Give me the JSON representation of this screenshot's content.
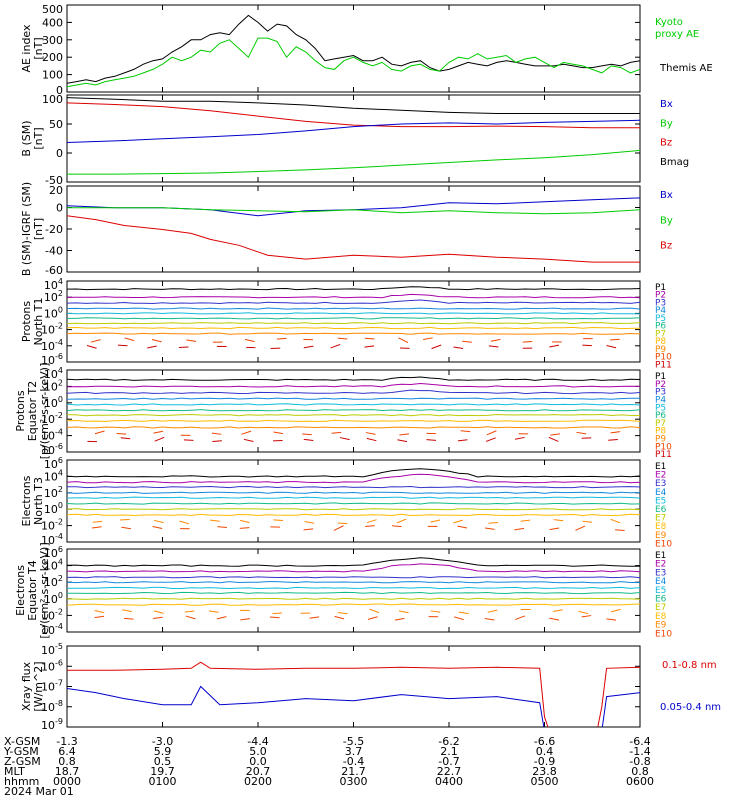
{
  "colors": {
    "black": "#000000",
    "red": "#dd0000",
    "blue": "#0000cc",
    "green": "#00cc00",
    "chan": [
      "#000000",
      "#aa00aa",
      "#3333cc",
      "#1188dd",
      "#11bbdd",
      "#11bb88",
      "#bbcc00",
      "#ffbb00",
      "#ff8800",
      "#ee4400",
      "#cc0000"
    ]
  },
  "chart_data": [
    {
      "type": "line",
      "panel": "ae",
      "ylabel": [
        "AE index",
        "[nT]"
      ],
      "yticks": [
        "500",
        "400",
        "300",
        "200",
        "100",
        "0"
      ],
      "ylim": [
        0,
        500
      ],
      "legend": [
        {
          "name": "Kyoto proxy AE",
          "lines": [
            "Kyoto",
            "proxy AE"
          ],
          "color": "#00cc00"
        },
        {
          "name": "Themis AE",
          "lines": [
            "Themis AE"
          ],
          "color": "#000000"
        }
      ],
      "series": [
        {
          "name": "Themis AE",
          "color": "#000000",
          "x": [
            0,
            0.1,
            0.2,
            0.3,
            0.4,
            0.5,
            0.6,
            0.7,
            0.8,
            0.9,
            1.0,
            1.1,
            1.2,
            1.3,
            1.4,
            1.5,
            1.6,
            1.7,
            1.8,
            1.9,
            2.0,
            2.1,
            2.2,
            2.3,
            2.4,
            2.5,
            2.6,
            2.7,
            2.8,
            2.9,
            3.0,
            3.1,
            3.2,
            3.3,
            3.4,
            3.5,
            3.6,
            3.7,
            3.8,
            3.9,
            4.0,
            4.1,
            4.2,
            4.3,
            4.4,
            4.5,
            4.6,
            4.7,
            4.8,
            4.9,
            5.0,
            5.1,
            5.2,
            5.3,
            5.4,
            5.5,
            5.6,
            5.7,
            5.8,
            5.9,
            6.0
          ],
          "y": [
            50,
            60,
            70,
            60,
            80,
            90,
            110,
            130,
            160,
            180,
            190,
            230,
            260,
            300,
            300,
            330,
            340,
            330,
            390,
            440,
            400,
            350,
            390,
            380,
            330,
            300,
            250,
            180,
            190,
            200,
            210,
            180,
            180,
            200,
            160,
            150,
            170,
            180,
            140,
            120,
            130,
            150,
            170,
            160,
            150,
            170,
            180,
            170,
            160,
            150,
            150,
            150,
            160,
            150,
            140,
            140,
            150,
            160,
            150,
            170,
            180
          ]
        },
        {
          "name": "Kyoto proxy AE",
          "color": "#00cc00",
          "x": [
            0,
            0.1,
            0.2,
            0.3,
            0.4,
            0.5,
            0.6,
            0.7,
            0.8,
            0.9,
            1.0,
            1.1,
            1.2,
            1.3,
            1.4,
            1.5,
            1.6,
            1.7,
            1.8,
            1.9,
            2.0,
            2.1,
            2.2,
            2.3,
            2.4,
            2.5,
            2.6,
            2.7,
            2.8,
            2.9,
            3.0,
            3.1,
            3.2,
            3.3,
            3.4,
            3.5,
            3.6,
            3.7,
            3.8,
            3.9,
            4.0,
            4.1,
            4.2,
            4.3,
            4.4,
            4.5,
            4.6,
            4.7,
            4.8,
            4.9,
            5.0,
            5.1,
            5.2,
            5.3,
            5.4,
            5.5,
            5.6,
            5.7,
            5.8,
            5.9,
            6.0
          ],
          "y": [
            30,
            40,
            50,
            40,
            60,
            70,
            80,
            90,
            110,
            130,
            160,
            200,
            180,
            200,
            240,
            230,
            280,
            300,
            250,
            200,
            310,
            310,
            290,
            200,
            260,
            230,
            180,
            140,
            130,
            180,
            200,
            170,
            150,
            170,
            130,
            120,
            150,
            160,
            130,
            120,
            170,
            200,
            190,
            220,
            190,
            200,
            210,
            170,
            190,
            200,
            170,
            140,
            170,
            160,
            150,
            130,
            110,
            150,
            140,
            110,
            130
          ]
        }
      ]
    },
    {
      "type": "line",
      "panel": "bgsm",
      "ylabel": [
        "B (SM)",
        "[nT]"
      ],
      "yticks": [
        "100",
        "50",
        "0",
        "-50"
      ],
      "ylim": [
        -60,
        105
      ],
      "legend": [
        {
          "name": "Bx",
          "color": "#0000cc"
        },
        {
          "name": "By",
          "color": "#00cc00"
        },
        {
          "name": "Bz",
          "color": "#dd0000"
        },
        {
          "name": "Bmag",
          "color": "#000000"
        }
      ],
      "series": [
        {
          "name": "Bmag",
          "color": "#000000",
          "x": [
            0,
            0.5,
            1.0,
            1.5,
            2.0,
            2.5,
            3.0,
            3.5,
            4.0,
            4.5,
            5.0,
            5.5,
            6.0
          ],
          "y": [
            100,
            97,
            93,
            93,
            90,
            86,
            80,
            76,
            72,
            70,
            70,
            70,
            70
          ]
        },
        {
          "name": "Bz",
          "color": "#dd0000",
          "x": [
            0,
            0.5,
            1.0,
            1.5,
            2.0,
            2.5,
            3.0,
            3.5,
            4.0,
            4.5,
            5.0,
            5.5,
            6.0
          ],
          "y": [
            90,
            87,
            83,
            75,
            65,
            55,
            48,
            45,
            45,
            46,
            45,
            43,
            43
          ]
        },
        {
          "name": "Bx",
          "color": "#0000cc",
          "x": [
            0,
            0.5,
            1.0,
            1.5,
            2.0,
            2.5,
            3.0,
            3.5,
            4.0,
            4.5,
            5.0,
            5.5,
            6.0
          ],
          "y": [
            15,
            18,
            22,
            26,
            30,
            37,
            45,
            50,
            52,
            50,
            53,
            55,
            57
          ]
        },
        {
          "name": "By",
          "color": "#00cc00",
          "x": [
            0,
            0.5,
            1.0,
            1.5,
            2.0,
            2.5,
            3.0,
            3.5,
            4.0,
            4.5,
            5.0,
            5.5,
            6.0
          ],
          "y": [
            -45,
            -45,
            -44,
            -43,
            -40,
            -37,
            -33,
            -28,
            -23,
            -18,
            -14,
            -8,
            0
          ]
        }
      ]
    },
    {
      "type": "line",
      "panel": "bigrf",
      "ylabel": [
        "B (SM)-IGRF (SM)",
        "[nT]"
      ],
      "yticks": [
        "20",
        "0",
        "-20",
        "-40",
        "-60"
      ],
      "ylim": [
        -65,
        22
      ],
      "legend": [
        {
          "name": "Bx",
          "color": "#0000cc"
        },
        {
          "name": "By",
          "color": "#00cc00"
        },
        {
          "name": "Bz",
          "color": "#dd0000"
        }
      ],
      "series": [
        {
          "name": "Bx",
          "color": "#0000cc",
          "x": [
            0,
            0.5,
            1.0,
            1.5,
            2.0,
            2.5,
            3.0,
            3.5,
            4.0,
            4.5,
            5.0,
            5.5,
            6.0
          ],
          "y": [
            2,
            0,
            0,
            -2,
            -8,
            -3,
            -2,
            0,
            5,
            4,
            6,
            8,
            10
          ]
        },
        {
          "name": "By",
          "color": "#00cc00",
          "x": [
            0,
            0.5,
            1.0,
            1.5,
            2.0,
            2.5,
            3.0,
            3.5,
            4.0,
            4.5,
            5.0,
            5.5,
            6.0
          ],
          "y": [
            0,
            0,
            0,
            -2,
            -3,
            -4,
            -2,
            -5,
            -3,
            -5,
            -6,
            -5,
            -2
          ]
        },
        {
          "name": "Bz",
          "color": "#dd0000",
          "x": [
            0,
            0.3,
            0.6,
            1.0,
            1.3,
            1.5,
            1.8,
            2.1,
            2.5,
            3.0,
            3.5,
            4.0,
            4.5,
            5.0,
            5.5,
            6.0
          ],
          "y": [
            -8,
            -12,
            -18,
            -22,
            -26,
            -32,
            -38,
            -48,
            -52,
            -48,
            -50,
            -47,
            -50,
            -52,
            -55,
            -55
          ]
        }
      ]
    },
    {
      "type": "line",
      "panel": "p1",
      "log": true,
      "ylabel": [
        "Protons",
        "North T1"
      ],
      "yticks": [
        "10^4",
        "10^2",
        "10^0",
        "10^-2",
        "10^-4",
        "10^-6"
      ],
      "ylim": [
        -6,
        4
      ],
      "channels": [
        "P1",
        "P2",
        "P3",
        "P4",
        "P5",
        "P6",
        "P7",
        "P8",
        "P9",
        "P10",
        "P11"
      ],
      "levels": [
        3.0,
        2.0,
        1.3,
        0.6,
        0,
        -0.6,
        -1.2,
        -1.8,
        -2.5,
        -3.3,
        -4.1
      ]
    },
    {
      "type": "line",
      "panel": "p2",
      "log": true,
      "ylabel": [
        "Protons",
        "Equator T2",
        "[p/(cm²-s-sr-keV)]"
      ],
      "yticks": [
        "10^4",
        "10^2",
        "10^0",
        "10^-2",
        "10^-4",
        "10^-6"
      ],
      "ylim": [
        -6,
        4
      ],
      "channels": [
        "P1",
        "P2",
        "P3",
        "P4",
        "P5",
        "P6",
        "P7",
        "P8",
        "P9",
        "P10",
        "P11"
      ],
      "levels": [
        2.8,
        2.0,
        1.2,
        0.5,
        -0.2,
        -0.9,
        -1.5,
        -2.2,
        -3.0,
        -3.7,
        -4.5
      ]
    },
    {
      "type": "line",
      "panel": "e3",
      "log": true,
      "ylabel": [
        "Electrons",
        "North T3"
      ],
      "yticks": [
        "10^6",
        "10^4",
        "10^2",
        "10^0",
        "10^-2",
        "10^-4"
      ],
      "ylim": [
        -4,
        6
      ],
      "channels": [
        "E1",
        "E2",
        "E3",
        "E4",
        "E5",
        "E6",
        "E7",
        "E8",
        "E9",
        "E10"
      ],
      "levels": [
        4.0,
        3.3,
        2.7,
        2.0,
        1.4,
        0.7,
        0,
        -0.7,
        -1.5,
        -2.3
      ]
    },
    {
      "type": "line",
      "panel": "e4",
      "log": true,
      "ylabel": [
        "Electrons",
        "Equator T4",
        "[e/(cm²-s-sr-keV)]"
      ],
      "yticks": [
        "10^6",
        "10^4",
        "10^2",
        "10^0",
        "10^-2",
        "10^-4"
      ],
      "ylim": [
        -4,
        6
      ],
      "channels": [
        "E1",
        "E2",
        "E3",
        "E4",
        "E5",
        "E6",
        "E7",
        "E8",
        "E9",
        "E10"
      ],
      "levels": [
        4.0,
        3.3,
        2.6,
        2.0,
        1.3,
        0.7,
        0,
        -0.7,
        -1.5,
        -2.3
      ]
    },
    {
      "type": "line",
      "panel": "xray",
      "log": true,
      "ylabel": [
        "Xray flux",
        "[W/m^2]"
      ],
      "yticks": [
        "10^-5",
        "10^-6",
        "10^-7",
        "10^-8",
        "10^-9"
      ],
      "ylim": [
        -9,
        -5
      ],
      "legend": [
        {
          "name": "0.1-0.8 nm",
          "color": "#dd0000"
        },
        {
          "name": "0.05-0.4 nm",
          "color": "#0000cc"
        }
      ],
      "series": [
        {
          "name": "0.1-0.8 nm",
          "color": "#dd0000",
          "x": [
            0,
            0.5,
            1.0,
            1.3,
            1.4,
            1.5,
            2.0,
            2.5,
            3.0,
            3.5,
            4.0,
            4.5,
            4.95,
            5.0,
            5.05,
            5.55,
            5.6,
            5.65,
            6.0
          ],
          "y": [
            -6.2,
            -6.2,
            -6.15,
            -6.1,
            -5.8,
            -6.1,
            -6.15,
            -6.1,
            -6.1,
            -6.05,
            -6.1,
            -6.05,
            -6.1,
            -8.5,
            -9.2,
            -9.2,
            -8.0,
            -6.1,
            -6.05
          ]
        },
        {
          "name": "0.05-0.4 nm",
          "color": "#0000cc",
          "x": [
            0,
            0.3,
            0.6,
            1.0,
            1.3,
            1.4,
            1.6,
            2.0,
            2.5,
            3.0,
            3.5,
            4.0,
            4.5,
            4.95,
            5.0,
            5.6,
            5.65,
            6.0
          ],
          "y": [
            -7.1,
            -7.3,
            -7.6,
            -7.9,
            -7.9,
            -7.0,
            -7.9,
            -7.8,
            -7.6,
            -7.7,
            -7.4,
            -7.6,
            -7.5,
            -7.8,
            -9.2,
            -9.2,
            -7.5,
            -7.3
          ]
        }
      ]
    }
  ],
  "x_ticks": [
    {
      "xgsm": "-1.3",
      "ygsm": "6.4",
      "zgsm": "0.8",
      "mlt": "18.7",
      "hhmm": "0000"
    },
    {
      "xgsm": "-3.0",
      "ygsm": "5.9",
      "zgsm": "0.5",
      "mlt": "19.7",
      "hhmm": "0100"
    },
    {
      "xgsm": "-4.4",
      "ygsm": "5.0",
      "zgsm": "0.0",
      "mlt": "20.7",
      "hhmm": "0200"
    },
    {
      "xgsm": "-5.5",
      "ygsm": "3.7",
      "zgsm": "-0.4",
      "mlt": "21.7",
      "hhmm": "0300"
    },
    {
      "xgsm": "-6.2",
      "ygsm": "2.1",
      "zgsm": "-0.7",
      "mlt": "22.7",
      "hhmm": "0400"
    },
    {
      "xgsm": "-6.6",
      "ygsm": "0.4",
      "zgsm": "-0.9",
      "mlt": "23.8",
      "hhmm": "0500"
    },
    {
      "xgsm": "-6.4",
      "ygsm": "-1.4",
      "zgsm": "-0.8",
      "mlt": "0.8",
      "hhmm": "0600"
    }
  ],
  "row_labels": [
    "X-GSM",
    "Y-GSM",
    "Z-GSM",
    "MLT",
    "hhmm"
  ],
  "date": "2024 Mar 01"
}
